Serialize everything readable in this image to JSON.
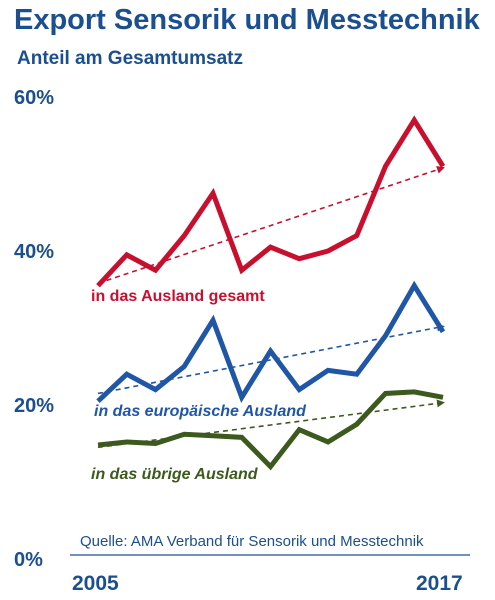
{
  "chart_data": {
    "type": "line",
    "title": "Export Sensorik und Messtechnik",
    "subtitle": "Anteil am Gesamtumsatz",
    "x": [
      2005,
      2006,
      2007,
      2008,
      2009,
      2010,
      2011,
      2012,
      2013,
      2014,
      2015,
      2016,
      2017
    ],
    "x_tick_labels": [
      "2005",
      "2017"
    ],
    "y_tick_labels": [
      "0%",
      "20%",
      "40%",
      "60%"
    ],
    "ylim": [
      0,
      60
    ],
    "series": [
      {
        "name": "in das Ausland gesamt",
        "color": "#c8102e",
        "values": [
          35.5,
          39.5,
          37.5,
          42.0,
          47.5,
          37.5,
          40.5,
          39.0,
          40.0,
          42.0,
          51.0,
          57.0,
          51.0
        ],
        "trend": [
          35.8,
          50.8
        ]
      },
      {
        "name": "in das europäische Ausland",
        "color": "#1f56a6",
        "values": [
          20.5,
          24.0,
          22.0,
          25.0,
          31.0,
          21.0,
          27.0,
          22.0,
          24.5,
          24.0,
          29.0,
          35.5,
          29.5
        ],
        "trend": [
          21.5,
          30.2
        ]
      },
      {
        "name": "in das übrige Ausland",
        "color": "#3d5a1e",
        "values": [
          14.8,
          15.2,
          15.0,
          16.2,
          16.0,
          15.8,
          12.0,
          16.8,
          15.2,
          17.5,
          21.5,
          21.7,
          21.0
        ],
        "trend": [
          14.5,
          20.3
        ]
      }
    ],
    "source": "Quelle: AMA Verband für Sensorik und Messtechnik"
  }
}
